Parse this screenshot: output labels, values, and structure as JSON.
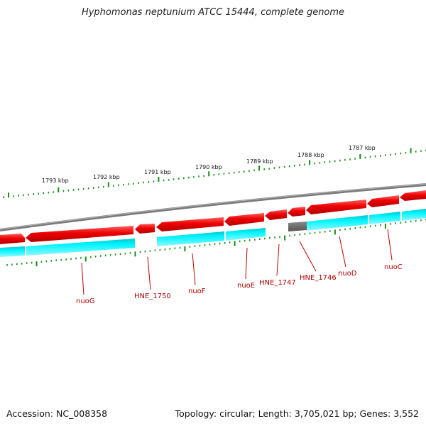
{
  "title": "Hyphomonas neptunium ATCC 15444, complete genome",
  "footer": {
    "accession": "Accession: NC_008358",
    "topology": "Topology: circular; Length: 3,705,021 bp; Genes: 3,552"
  },
  "kbp_labels": [
    "1793 kbp",
    "1792 kbp",
    "1791 kbp",
    "1790 kbp",
    "1789 kbp",
    "1788 kbp",
    "1787 kbp"
  ],
  "gene_labels": [
    "nuoG",
    "HNE_1750",
    "nuoF",
    "nuoE",
    "HNE_1747",
    "HNE_1746",
    "nuoD",
    "nuoC"
  ],
  "colors": {
    "gene_red": "#ee0000",
    "gene_cyan": "#00e8f0",
    "pseudo_gray": "#666666",
    "backbone": "#888888",
    "tick_green": "#1a8a1a",
    "label_red": "#b00000"
  }
}
